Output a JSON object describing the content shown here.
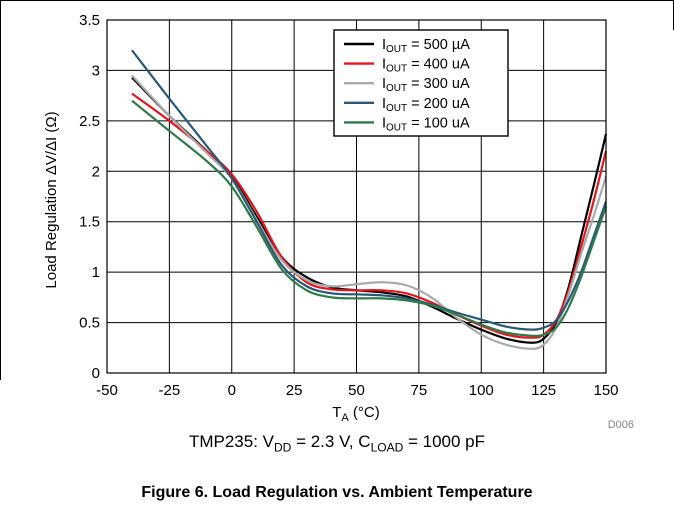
{
  "chart_data": {
    "type": "line",
    "xlabel_main": "T",
    "xlabel_sub": "A",
    "xlabel_rest": " (°C)",
    "ylabel": "Load Regulation ΔV/ΔI (Ω)",
    "xlim": [
      -50,
      150
    ],
    "ylim": [
      0,
      3.5
    ],
    "xticks": [
      -50,
      -25,
      0,
      25,
      50,
      75,
      100,
      125,
      150
    ],
    "yticks": [
      0,
      0.5,
      1,
      1.5,
      2,
      2.5,
      3,
      3.5
    ],
    "xtick_labels": [
      "-50",
      "-25",
      "0",
      "25",
      "50",
      "75",
      "100",
      "125",
      "150"
    ],
    "ytick_labels": [
      "0",
      "0.5",
      "1",
      "1.5",
      "2",
      "2.5",
      "3",
      "3.5"
    ],
    "grid": true,
    "legend_position": "top-right",
    "series": [
      {
        "name": "IOUT = 500 µA",
        "label_main": "I",
        "label_sub": "OUT",
        "label_rest": " = 500 µA",
        "color": "#000000",
        "x": [
          -40,
          -25,
          -10,
          0,
          10,
          20,
          30,
          40,
          50,
          60,
          70,
          80,
          90,
          100,
          110,
          120,
          125,
          130,
          135,
          140,
          145,
          150
        ],
        "y": [
          2.93,
          2.55,
          2.2,
          1.95,
          1.55,
          1.15,
          0.95,
          0.85,
          0.82,
          0.8,
          0.76,
          0.66,
          0.54,
          0.43,
          0.34,
          0.3,
          0.34,
          0.5,
          0.85,
          1.35,
          1.85,
          2.37
        ]
      },
      {
        "name": "IOUT = 400 uA",
        "label_main": "I",
        "label_sub": "OUT",
        "label_rest": " = 400 uA",
        "color": "#e8141b",
        "x": [
          -40,
          -25,
          -10,
          0,
          10,
          20,
          30,
          40,
          50,
          60,
          70,
          80,
          90,
          100,
          110,
          120,
          125,
          130,
          135,
          140,
          145,
          150
        ],
        "y": [
          2.77,
          2.5,
          2.2,
          1.97,
          1.6,
          1.15,
          0.9,
          0.83,
          0.82,
          0.82,
          0.79,
          0.7,
          0.58,
          0.47,
          0.38,
          0.35,
          0.38,
          0.52,
          0.82,
          1.25,
          1.7,
          2.2
        ]
      },
      {
        "name": "IOUT = 300 uA",
        "label_main": "I",
        "label_sub": "OUT",
        "label_rest": " = 300 uA",
        "color": "#aaaaaa",
        "x": [
          -40,
          -25,
          -10,
          0,
          10,
          20,
          30,
          40,
          50,
          60,
          70,
          80,
          90,
          100,
          110,
          120,
          125,
          130,
          135,
          140,
          145,
          150
        ],
        "y": [
          2.95,
          2.55,
          2.18,
          1.93,
          1.52,
          1.12,
          0.92,
          0.86,
          0.88,
          0.9,
          0.87,
          0.75,
          0.55,
          0.38,
          0.28,
          0.24,
          0.28,
          0.45,
          0.78,
          1.18,
          1.55,
          1.95
        ]
      },
      {
        "name": "IOUT = 200 uA",
        "label_main": "I",
        "label_sub": "OUT",
        "label_rest": " = 200 uA",
        "color": "#2a5878",
        "x": [
          -40,
          -25,
          -10,
          0,
          10,
          20,
          30,
          40,
          50,
          60,
          70,
          80,
          90,
          100,
          110,
          120,
          125,
          130,
          135,
          140,
          145,
          150
        ],
        "y": [
          3.2,
          2.72,
          2.25,
          1.93,
          1.5,
          1.07,
          0.86,
          0.79,
          0.78,
          0.77,
          0.74,
          0.68,
          0.6,
          0.53,
          0.46,
          0.43,
          0.45,
          0.52,
          0.72,
          1.0,
          1.35,
          1.7
        ]
      },
      {
        "name": "IOUT = 100 uA",
        "label_main": "I",
        "label_sub": "OUT",
        "label_rest": " = 100 uA",
        "color": "#2f7a46",
        "x": [
          -40,
          -25,
          -10,
          0,
          10,
          20,
          30,
          40,
          50,
          60,
          70,
          80,
          90,
          100,
          110,
          120,
          125,
          130,
          135,
          140,
          145,
          150
        ],
        "y": [
          2.7,
          2.4,
          2.1,
          1.85,
          1.45,
          1.03,
          0.82,
          0.75,
          0.74,
          0.74,
          0.72,
          0.67,
          0.58,
          0.48,
          0.4,
          0.37,
          0.38,
          0.45,
          0.65,
          0.95,
          1.3,
          1.65
        ]
      }
    ],
    "code_label": "D006"
  },
  "conditions": {
    "prefix": "TMP235: V",
    "vdd_sub": "DD",
    "mid": " = 2.3 V, C",
    "cload_sub": "LOAD",
    "suffix": " = 1000 pF"
  },
  "figure_caption": "Figure 6. Load Regulation vs. Ambient Temperature"
}
